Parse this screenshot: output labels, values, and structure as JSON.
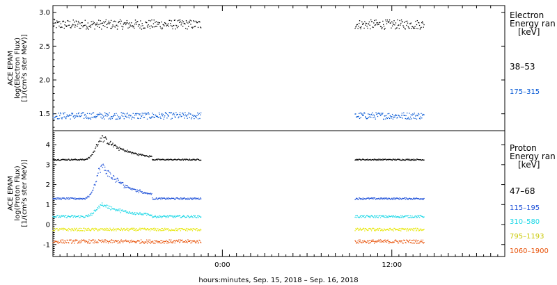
{
  "chart_data": [
    {
      "type": "scatter",
      "ylabel": [
        "ACE EPAM",
        "log(Electron Flux)",
        "[1/(cm²s ster MeV)]"
      ],
      "ylim": [
        1.25,
        3.1
      ],
      "yticks": [
        "1.5",
        "2.0",
        "2.5",
        "3.0"
      ],
      "ytick_values": [
        1.5,
        2.0,
        2.5,
        3.0
      ],
      "legend_title": [
        "Electron",
        "Energy ran",
        "[keV]"
      ],
      "series": [
        {
          "name": "38–53",
          "color": "#000000",
          "level": 2.82,
          "noise": 0.07,
          "segments": [
            [
              -12,
              -1.5
            ],
            [
              9.4,
              14.3
            ]
          ]
        },
        {
          "name": "175–315",
          "color": "#0055d4",
          "level": 1.47,
          "noise": 0.05,
          "segments": [
            [
              -12,
              -1.5
            ],
            [
              9.4,
              14.3
            ]
          ]
        }
      ]
    },
    {
      "type": "scatter",
      "ylabel": [
        "ACE EPAM",
        "log(Proton Flux)",
        "[1/(cm²s ster MeV)]"
      ],
      "ylim": [
        -1.6,
        4.7
      ],
      "yticks": [
        "-1",
        "0",
        "1",
        "2",
        "3",
        "4"
      ],
      "ytick_values": [
        -1,
        0,
        1,
        2,
        3,
        4
      ],
      "legend_title": [
        "Proton",
        "Energy ran",
        "[keV]"
      ],
      "series": [
        {
          "name": "47–68",
          "color": "#000000",
          "level": 3.25,
          "noise": 0.03,
          "segments": [
            [
              -12,
              -1.5
            ],
            [
              9.4,
              14.3
            ]
          ],
          "peak": 4.35
        },
        {
          "name": "115–195",
          "color": "#1c4fd8",
          "level": 1.3,
          "noise": 0.04,
          "segments": [
            [
              -12,
              -1.5
            ],
            [
              9.4,
              14.3
            ]
          ],
          "peak": 2.9
        },
        {
          "name": "310–580",
          "color": "#19d7e6",
          "level": 0.4,
          "noise": 0.06,
          "segments": [
            [
              -12,
              -1.5
            ],
            [
              9.4,
              14.3
            ]
          ],
          "peak": 1.0
        },
        {
          "name": "795–1193",
          "color": "#e6e600",
          "level": -0.25,
          "noise": 0.07,
          "segments": [
            [
              -12,
              -1.5
            ],
            [
              9.4,
              14.3
            ]
          ],
          "peak": null
        },
        {
          "name": "1060–1900",
          "color": "#e8530a",
          "level": -0.85,
          "noise": 0.09,
          "segments": [
            [
              -12,
              -1.5
            ],
            [
              9.4,
              14.3
            ]
          ],
          "peak": null
        }
      ]
    }
  ],
  "xaxis": {
    "label": "hours:minutes, Sep. 15, 2018 – Sep. 16, 2018",
    "range_hours": [
      -12,
      20
    ],
    "major_ticks": [
      0,
      12
    ],
    "major_labels": [
      "0:00",
      "12:00"
    ]
  },
  "event": {
    "peak_hour": -8.5,
    "rise_hours": 0.6,
    "decay_hours": 1.8
  }
}
